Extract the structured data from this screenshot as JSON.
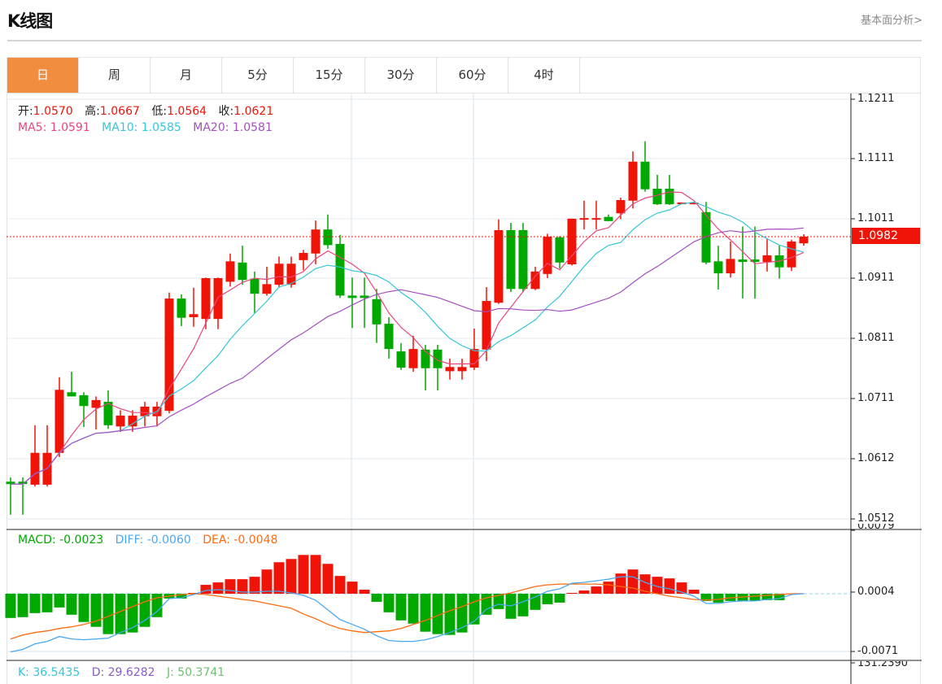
{
  "header": {
    "title": "K线图",
    "more_link": "基本面分析>"
  },
  "tabs": [
    {
      "label": "日",
      "active": true
    },
    {
      "label": "周"
    },
    {
      "label": "月"
    },
    {
      "label": "5分"
    },
    {
      "label": "15分"
    },
    {
      "label": "30分"
    },
    {
      "label": "60分"
    },
    {
      "label": "4时"
    }
  ],
  "colors": {
    "up": "#f01408",
    "down": "#00a800",
    "ma5": "#e8467c",
    "ma10": "#35c6d8",
    "ma20": "#a54fc0",
    "diff": "#4aa8f0",
    "dea": "#ff6a0d",
    "accent": "#f28c3e"
  },
  "ohlc_info": {
    "open_label": "开:",
    "open": "1.0570",
    "high_label": "高:",
    "high": "1.0667",
    "low_label": "低:",
    "low": "1.0564",
    "close_label": "收:",
    "close": "1.0621"
  },
  "ma_info": {
    "ma5": "MA5: 1.0591",
    "ma10": "MA10: 1.0585",
    "ma20": "MA20: 1.0581"
  },
  "macd_info": {
    "macd": "MACD: -0.0023",
    "diff": "DIFF: -0.0060",
    "dea": "DEA: -0.0048"
  },
  "kdj_info": {
    "k": "K: 36.5435",
    "d": "D: 29.6282",
    "j": "J: 50.3741"
  },
  "chart_data": {
    "type": "candlestick",
    "price_axis": {
      "min": 1.0512,
      "max": 1.1211,
      "ticks": [
        "1.1211",
        "1.1111",
        "1.1011",
        "1.0911",
        "1.0811",
        "1.0711",
        "1.0612",
        "1.0512"
      ]
    },
    "last_price": "1.0982",
    "candles": [
      [
        1.0574,
        1.0581,
        1.0519,
        1.057
      ],
      [
        1.0574,
        1.0581,
        1.0519,
        1.057
      ],
      [
        1.0569,
        1.0668,
        1.0566,
        1.0622
      ],
      [
        1.0569,
        1.0668,
        1.0566,
        1.0622
      ],
      [
        1.0622,
        1.0748,
        1.0615,
        1.0727
      ],
      [
        1.0723,
        1.0757,
        1.0716,
        1.0716
      ],
      [
        1.0718,
        1.0723,
        1.0665,
        1.07
      ],
      [
        1.0697,
        1.0716,
        1.0661,
        1.071
      ],
      [
        1.0707,
        1.0726,
        1.0662,
        1.0668
      ],
      [
        1.0666,
        1.0693,
        1.0657,
        1.0684
      ],
      [
        1.0666,
        1.0693,
        1.0657,
        1.0684
      ],
      [
        1.0683,
        1.0707,
        1.0666,
        1.0699
      ],
      [
        1.0683,
        1.0707,
        1.0666,
        1.0699
      ],
      [
        1.0692,
        1.0889,
        1.0688,
        1.0879
      ],
      [
        1.0879,
        1.0886,
        1.0833,
        1.0847
      ],
      [
        1.0848,
        1.0897,
        1.0832,
        1.0853
      ],
      [
        1.0845,
        1.0914,
        1.0828,
        1.0913
      ],
      [
        1.0845,
        1.0914,
        1.0828,
        1.0913
      ],
      [
        1.0907,
        1.0954,
        1.0899,
        1.0941
      ],
      [
        1.0939,
        1.0967,
        1.0902,
        1.091
      ],
      [
        1.0912,
        1.0924,
        1.0855,
        1.0887
      ],
      [
        1.0887,
        1.0932,
        1.0884,
        1.0903
      ],
      [
        1.0902,
        1.0949,
        1.0897,
        1.0937
      ],
      [
        1.0902,
        1.0949,
        1.0897,
        1.0937
      ],
      [
        1.0943,
        1.096,
        1.0926,
        1.0955
      ],
      [
        1.0954,
        1.1009,
        1.0936,
        1.0994
      ],
      [
        1.0994,
        1.1019,
        1.0962,
        1.0968
      ],
      [
        1.097,
        1.0985,
        1.088,
        1.0884
      ],
      [
        1.0884,
        1.0914,
        1.083,
        1.088
      ],
      [
        1.0884,
        1.0914,
        1.083,
        1.088
      ],
      [
        1.0878,
        1.0895,
        1.0805,
        1.0836
      ],
      [
        1.0837,
        1.0848,
        1.0779,
        1.0795
      ],
      [
        1.0791,
        1.0805,
        1.076,
        1.0764
      ],
      [
        1.0763,
        1.0817,
        1.0757,
        1.0795
      ],
      [
        1.0794,
        1.0802,
        1.0726,
        1.0763
      ],
      [
        1.0794,
        1.0802,
        1.0726,
        1.0763
      ],
      [
        1.0758,
        1.0779,
        1.0744,
        1.0765
      ],
      [
        1.0758,
        1.0779,
        1.0744,
        1.0765
      ],
      [
        1.0764,
        1.0829,
        1.076,
        1.0795
      ],
      [
        1.0794,
        1.0898,
        1.0775,
        1.0875
      ],
      [
        1.0872,
        1.1011,
        1.087,
        1.0993
      ],
      [
        1.0993,
        1.1005,
        1.089,
        1.0895
      ],
      [
        1.0993,
        1.1005,
        1.089,
        1.0895
      ],
      [
        1.0895,
        1.0932,
        1.0893,
        1.0924
      ],
      [
        1.092,
        1.0987,
        1.0913,
        1.0982
      ],
      [
        1.0981,
        1.0983,
        1.0929,
        1.0939
      ],
      [
        1.0936,
        1.1012,
        1.0934,
        1.1012
      ],
      [
        1.1011,
        1.1042,
        1.0994,
        1.1013
      ],
      [
        1.1011,
        1.1042,
        1.0994,
        1.1013
      ],
      [
        1.1015,
        1.1019,
        1.1008,
        1.1008
      ],
      [
        1.1021,
        1.1047,
        1.1011,
        1.1043
      ],
      [
        1.1042,
        1.1124,
        1.1029,
        1.1107
      ],
      [
        1.1107,
        1.1141,
        1.1057,
        1.1061
      ],
      [
        1.1062,
        1.1085,
        1.1035,
        1.1036
      ],
      [
        1.1062,
        1.1085,
        1.1035,
        1.1036
      ],
      [
        1.1036,
        1.1039,
        1.1036,
        1.1039
      ],
      [
        1.1036,
        1.1039,
        1.1036,
        1.1039
      ],
      [
        1.1023,
        1.104,
        1.0936,
        1.0939
      ],
      [
        1.0941,
        1.0967,
        1.0894,
        1.0921
      ],
      [
        1.0921,
        1.0974,
        1.0914,
        1.0945
      ],
      [
        1.0944,
        1.0999,
        1.0879,
        1.094
      ],
      [
        1.0944,
        1.0999,
        1.0879,
        1.094
      ],
      [
        1.094,
        1.0979,
        1.0924,
        1.0951
      ],
      [
        1.0951,
        1.0967,
        1.0912,
        1.0931
      ],
      [
        1.0931,
        1.0977,
        1.0925,
        1.0974
      ],
      [
        1.0971,
        1.0986,
        1.0967,
        1.0982
      ]
    ],
    "macd_axis": {
      "max": 0.0079,
      "min": -0.0071,
      "ticks": [
        "0.0079",
        "0.0004",
        "-0.0071"
      ]
    },
    "kdj_axis_top": "131.2390",
    "macd": [
      -0.003,
      -0.0029,
      -0.0024,
      -0.0023,
      -0.0017,
      -0.0026,
      -0.0035,
      -0.0041,
      -0.005,
      -0.005,
      -0.0048,
      -0.0041,
      -0.0029,
      -0.0006,
      -0.0006,
      0.0001,
      0.0011,
      0.0014,
      0.0018,
      0.0018,
      0.0021,
      0.003,
      0.0039,
      0.0043,
      0.0048,
      0.0048,
      0.0037,
      0.0022,
      0.0015,
      0.0005,
      -0.001,
      -0.0023,
      -0.0033,
      -0.0037,
      -0.0047,
      -0.005,
      -0.0051,
      -0.0048,
      -0.0038,
      -0.0026,
      -0.0019,
      -0.0031,
      -0.0028,
      -0.002,
      -0.0013,
      -0.0011,
      0.0001,
      0.0004,
      0.0009,
      0.0015,
      0.0025,
      0.003,
      0.0024,
      0.0021,
      0.0019,
      0.0014,
      0.0005,
      -0.0009,
      -0.0011,
      -0.0009,
      -0.0009,
      -0.0009,
      -0.0008,
      -0.0008,
      0,
      0
    ],
    "diff": [
      -0.0072,
      -0.0069,
      -0.0062,
      -0.0059,
      -0.0053,
      -0.0056,
      -0.0057,
      -0.0056,
      -0.0055,
      -0.0048,
      -0.0042,
      -0.0033,
      -0.0022,
      -0.0006,
      -0.0005,
      -0.0001,
      0.0004,
      0.0005,
      0.0004,
      0.0002,
      0.0002,
      0.0003,
      0.0003,
      0.0001,
      -0.0002,
      -0.0008,
      -0.002,
      -0.0032,
      -0.0038,
      -0.0044,
      -0.0052,
      -0.0058,
      -0.0059,
      -0.0059,
      -0.0057,
      -0.0053,
      -0.0048,
      -0.0042,
      -0.0034,
      -0.0019,
      -0.0013,
      -0.0015,
      -0.001,
      -0.0004,
      0.0003,
      0.0006,
      0.0013,
      0.0014,
      0.0016,
      0.0018,
      0.0021,
      0.0021,
      0.0014,
      0.0009,
      0.0006,
      0.0002,
      -0.0003,
      -0.0012,
      -0.0012,
      -0.001,
      -0.0009,
      -0.0009,
      -0.0007,
      -0.0006,
      -0.0001,
      0.0
    ],
    "dea": [
      -0.0056,
      -0.0051,
      -0.0048,
      -0.0046,
      -0.0043,
      -0.0041,
      -0.0038,
      -0.0034,
      -0.0028,
      -0.0022,
      -0.0016,
      -0.001,
      -0.0005,
      -0.0003,
      -0.0001,
      0.0,
      -0.0001,
      -0.0003,
      -0.0005,
      -0.0007,
      -0.0009,
      -0.0012,
      -0.0015,
      -0.0018,
      -0.0025,
      -0.0031,
      -0.0038,
      -0.0043,
      -0.0046,
      -0.0048,
      -0.0047,
      -0.0046,
      -0.0043,
      -0.0038,
      -0.0033,
      -0.0027,
      -0.0021,
      -0.0016,
      -0.001,
      -0.0005,
      -0.0002,
      0.0001,
      0.0005,
      0.0009,
      0.0011,
      0.0012,
      0.0012,
      0.0012,
      0.0012,
      0.0011,
      0.0009,
      0.0007,
      0.0003,
      0.0,
      -0.0003,
      -0.0005,
      -0.0007,
      -0.0008,
      -0.0007,
      -0.0005,
      -0.0004,
      -0.0003,
      -0.0002,
      -0.0001,
      0.0,
      0.0
    ]
  }
}
